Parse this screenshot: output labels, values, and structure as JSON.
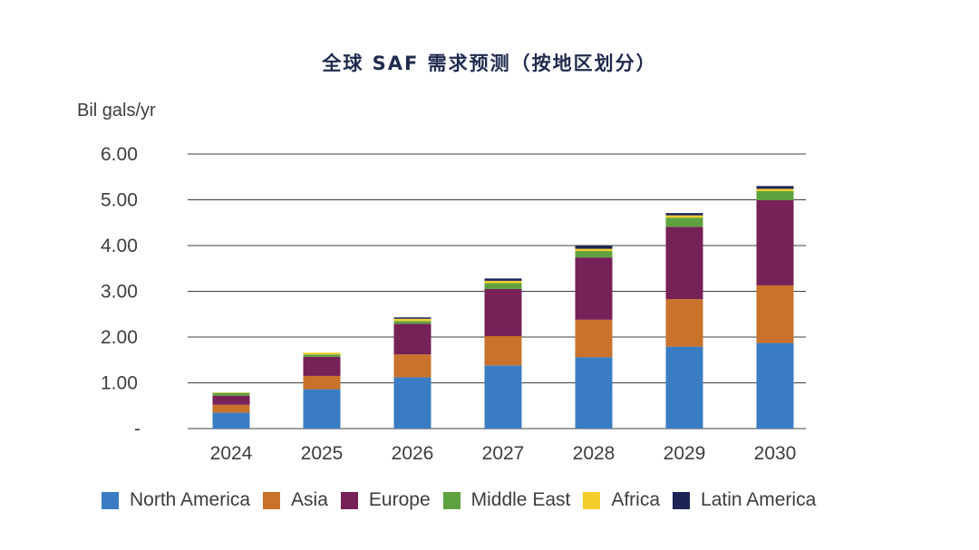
{
  "chart_data": {
    "type": "bar",
    "stacked": true,
    "title": "全球 SAF 需求预测（按地区划分）",
    "ylabel": "Bil gals/yr",
    "xlabel": "",
    "ylim": [
      0,
      6
    ],
    "yticks": [
      0,
      1,
      2,
      3,
      4,
      5,
      6
    ],
    "ytick_labels": [
      "-",
      "1.00",
      "2.00",
      "3.00",
      "4.00",
      "5.00",
      "6.00"
    ],
    "grid": true,
    "legend_position": "bottom",
    "categories": [
      "2024",
      "2025",
      "2026",
      "2027",
      "2028",
      "2029",
      "2030"
    ],
    "series": [
      {
        "name": "North America",
        "color": "#3a7cc3",
        "values": [
          0.35,
          0.86,
          1.12,
          1.38,
          1.56,
          1.79,
          1.87
        ]
      },
      {
        "name": "Asia",
        "color": "#c9722b",
        "values": [
          0.17,
          0.29,
          0.5,
          0.64,
          0.82,
          1.04,
          1.26
        ]
      },
      {
        "name": "Europe",
        "color": "#762157",
        "values": [
          0.2,
          0.42,
          0.67,
          1.03,
          1.36,
          1.58,
          1.86
        ]
      },
      {
        "name": "Middle East",
        "color": "#5ea23f",
        "values": [
          0.06,
          0.05,
          0.06,
          0.13,
          0.14,
          0.2,
          0.2
        ]
      },
      {
        "name": "Africa",
        "color": "#f2cd2c",
        "values": [
          0.01,
          0.04,
          0.05,
          0.05,
          0.05,
          0.05,
          0.05
        ]
      },
      {
        "name": "Latin America",
        "color": "#1b2455",
        "values": [
          0.0,
          0.0,
          0.03,
          0.05,
          0.06,
          0.05,
          0.06
        ]
      }
    ]
  }
}
